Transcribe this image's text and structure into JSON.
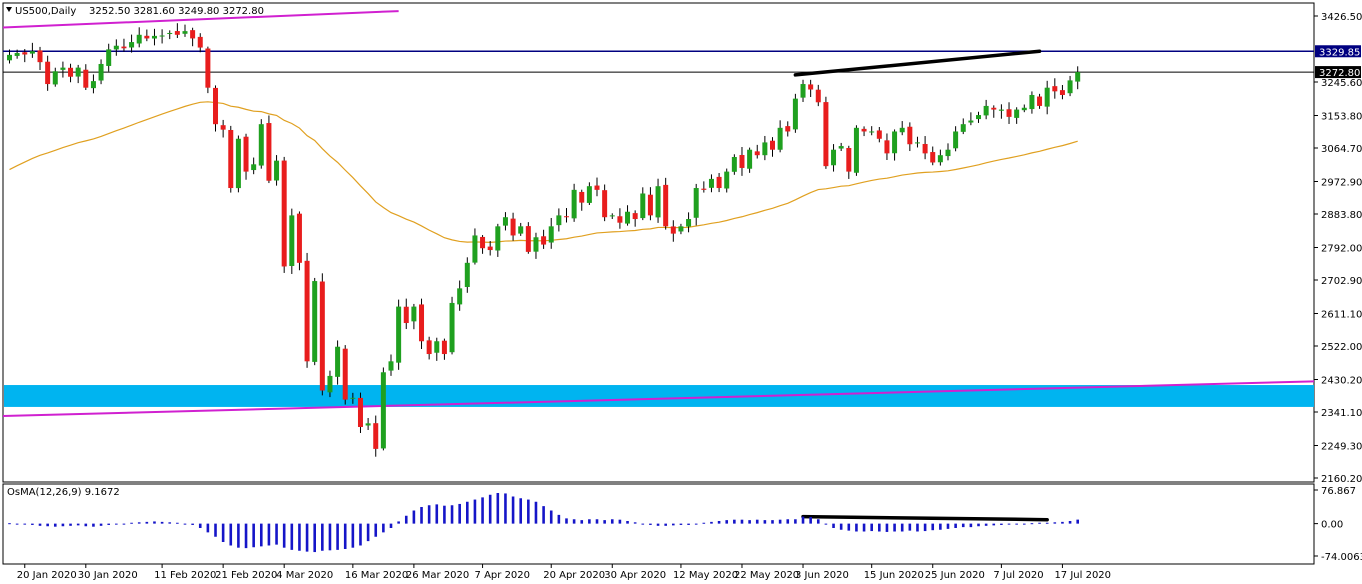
{
  "header": {
    "symbol_label": "US500,Daily",
    "ohlc_label": "3252.50 3281.60 3249.80 3272.80"
  },
  "indicator": {
    "label": "OsMA(12,26,9) 9.1672"
  },
  "colors": {
    "bull": "#1fa01f",
    "bear": "#e81d1d",
    "ma": "#e0a020",
    "trend_top": "#d020d0",
    "trend_bottom": "#d020d0",
    "zone": "#00b4f0",
    "osma": "#1515c8",
    "level_resistance": "#000080",
    "level_current": "#000000",
    "annotation": "#000000"
  },
  "chart_data": [
    {
      "type": "candlestick",
      "name": "US500,Daily",
      "ylim": [
        2160.2,
        3426.5
      ],
      "y_ticks": [
        "3426.50",
        "3329.85",
        "3272.80",
        "3245.60",
        "3153.80",
        "3064.70",
        "2972.90",
        "2883.80",
        "2792.00",
        "2702.90",
        "2611.10",
        "2522.00",
        "2430.20",
        "2341.10",
        "2249.30",
        "2160.20"
      ],
      "x_ticks": [
        "20 Jan 2020",
        "30 Jan 2020",
        "11 Feb 2020",
        "21 Feb 2020",
        "4 Mar 2020",
        "16 Mar 2020",
        "26 Mar 2020",
        "7 Apr 2020",
        "20 Apr 2020",
        "30 Apr 2020",
        "12 May 2020",
        "22 May 2020",
        "3 Jun 2020",
        "15 Jun 2020",
        "25 Jun 2020",
        "7 Jul 2020",
        "17 Jul 2020"
      ],
      "x_tick_index": [
        2,
        10,
        20,
        28,
        36,
        45,
        53,
        62,
        71,
        79,
        88,
        96,
        104,
        113,
        121,
        130,
        138
      ],
      "closes": [
        3320,
        3325,
        3321,
        3330,
        3300,
        3240,
        3275,
        3285,
        3260,
        3285,
        3230,
        3248,
        3295,
        3335,
        3345,
        3338,
        3355,
        3375,
        3365,
        3372,
        3373,
        3380,
        3375,
        3385,
        3365,
        3340,
        3230,
        3130,
        3115,
        2955,
        3090,
        3000,
        3020,
        3130,
        2975,
        3030,
        2740,
        2880,
        2750,
        2480,
        2700,
        2400,
        2440,
        2520,
        2375,
        2380,
        2300,
        2310,
        2240,
        2450,
        2480,
        2630,
        2585,
        2630,
        2535,
        2500,
        2535,
        2500,
        2640,
        2680,
        2750,
        2825,
        2790,
        2785,
        2850,
        2875,
        2825,
        2850,
        2780,
        2820,
        2800,
        2850,
        2880,
        2875,
        2950,
        2915,
        2960,
        2950,
        2875,
        2880,
        2860,
        2890,
        2870,
        2940,
        2880,
        2960,
        2850,
        2830,
        2850,
        2870,
        2955,
        2950,
        2980,
        2955,
        3000,
        3040,
        3010,
        3060,
        3045,
        3080,
        3060,
        3120,
        3110,
        3200,
        3240,
        3225,
        3190,
        3015,
        3060,
        3070,
        3000,
        3120,
        3110,
        3110,
        3090,
        3050,
        3110,
        3120,
        3075,
        3080,
        3050,
        3025,
        3045,
        3060,
        3110,
        3130,
        3140,
        3155,
        3180,
        3170,
        3170,
        3150,
        3170,
        3175,
        3210,
        3180,
        3230,
        3220,
        3210,
        3250,
        3272.8
      ],
      "horizontal_levels": [
        {
          "price": 3329.85,
          "tag": "3329.85"
        },
        {
          "price": 3272.8,
          "tag": "3272.80"
        }
      ],
      "overlay": "moving average (orange)",
      "annotations": [
        "upper channel line",
        "lower channel line",
        "support zone",
        "trendline on price highs"
      ]
    },
    {
      "type": "histogram",
      "name": "OsMA(12,26,9)",
      "ylim": [
        -74.0063,
        76.867
      ],
      "y_ticks": [
        "76.867",
        "0.00",
        "-74.0063"
      ],
      "values": [
        1,
        0,
        -2,
        -3,
        -5,
        -6,
        -7,
        -6,
        -5,
        -4,
        -6,
        -7,
        -5,
        -3,
        -2,
        0,
        2,
        3,
        4,
        5,
        4,
        3,
        2,
        0,
        -3,
        -10,
        -20,
        -30,
        -42,
        -50,
        -55,
        -56,
        -54,
        -52,
        -50,
        -48,
        -55,
        -60,
        -62,
        -64,
        -65,
        -62,
        -61,
        -60,
        -58,
        -55,
        -50,
        -40,
        -30,
        -20,
        -10,
        5,
        18,
        30,
        38,
        42,
        44,
        41,
        42,
        45,
        50,
        55,
        60,
        66,
        70,
        69,
        62,
        58,
        55,
        50,
        40,
        30,
        20,
        12,
        10,
        8,
        10,
        10,
        8,
        10,
        9,
        6,
        3,
        0,
        -3,
        -5,
        -5,
        -4,
        -3,
        -3,
        0,
        2,
        4,
        6,
        8,
        9,
        9,
        8,
        9,
        8,
        8,
        9,
        10,
        10,
        16,
        15,
        10,
        0,
        -10,
        -14,
        -16,
        -18,
        -18,
        -17,
        -18,
        -19,
        -18,
        -18,
        -16,
        -18,
        -17,
        -15,
        -14,
        -12,
        -10,
        -8,
        -8,
        -6,
        -5,
        -4,
        -3,
        -2,
        -2,
        0,
        1,
        2,
        2,
        3,
        4,
        6,
        9.1672
      ]
    }
  ]
}
